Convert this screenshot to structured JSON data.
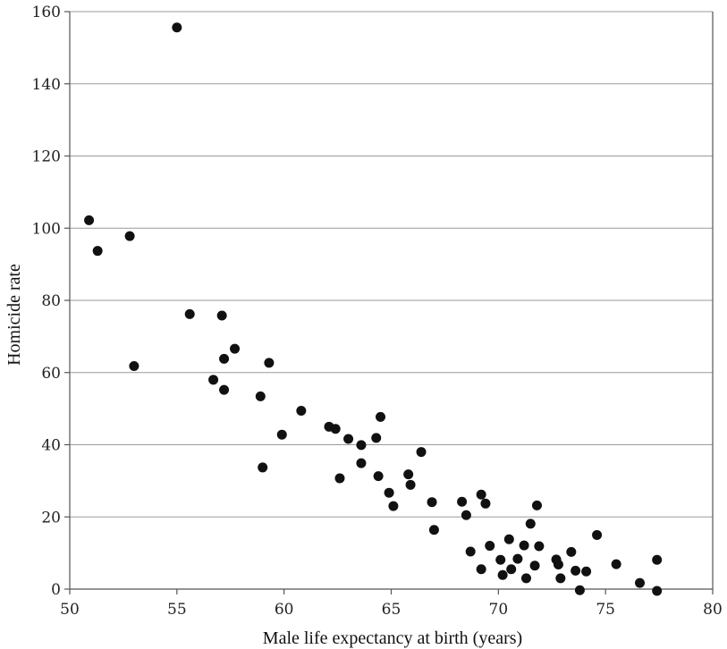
{
  "chart_data": {
    "type": "scatter",
    "title": "",
    "xlabel": "Male life expectancy at birth (years)",
    "ylabel": "Homicide rate",
    "xlim": [
      50,
      80
    ],
    "ylim": [
      0,
      160
    ],
    "x_ticks": [
      50,
      55,
      60,
      65,
      70,
      75,
      80
    ],
    "y_ticks": [
      0,
      20,
      40,
      60,
      80,
      100,
      120,
      140,
      160
    ],
    "x_tick_labels": [
      "50",
      "55",
      "60",
      "65",
      "70",
      "75",
      "80"
    ],
    "y_tick_labels": [
      "0",
      "20",
      "40",
      "60",
      "80",
      "100",
      "120",
      "140",
      "160"
    ],
    "grid": "horizontal",
    "point_color": "#111111",
    "points": [
      {
        "x": 50.9,
        "y": 102.2
      },
      {
        "x": 51.3,
        "y": 93.7
      },
      {
        "x": 52.8,
        "y": 97.8
      },
      {
        "x": 53.0,
        "y": 61.8
      },
      {
        "x": 55.0,
        "y": 155.6
      },
      {
        "x": 55.6,
        "y": 76.2
      },
      {
        "x": 56.7,
        "y": 58.0
      },
      {
        "x": 57.1,
        "y": 75.8
      },
      {
        "x": 57.2,
        "y": 63.8
      },
      {
        "x": 57.2,
        "y": 55.2
      },
      {
        "x": 57.7,
        "y": 66.6
      },
      {
        "x": 58.9,
        "y": 53.4
      },
      {
        "x": 59.0,
        "y": 33.7
      },
      {
        "x": 59.3,
        "y": 62.7
      },
      {
        "x": 59.9,
        "y": 42.8
      },
      {
        "x": 60.8,
        "y": 49.4
      },
      {
        "x": 62.1,
        "y": 45.0
      },
      {
        "x": 62.4,
        "y": 44.4
      },
      {
        "x": 62.6,
        "y": 30.7
      },
      {
        "x": 63.0,
        "y": 41.6
      },
      {
        "x": 63.6,
        "y": 39.9
      },
      {
        "x": 63.6,
        "y": 34.9
      },
      {
        "x": 64.3,
        "y": 41.9
      },
      {
        "x": 64.4,
        "y": 31.3
      },
      {
        "x": 64.5,
        "y": 47.7
      },
      {
        "x": 64.9,
        "y": 26.7
      },
      {
        "x": 65.1,
        "y": 23.0
      },
      {
        "x": 65.8,
        "y": 31.8
      },
      {
        "x": 65.9,
        "y": 28.9
      },
      {
        "x": 66.4,
        "y": 38.0
      },
      {
        "x": 66.9,
        "y": 24.1
      },
      {
        "x": 67.0,
        "y": 16.4
      },
      {
        "x": 68.3,
        "y": 24.2
      },
      {
        "x": 68.5,
        "y": 20.5
      },
      {
        "x": 68.7,
        "y": 10.4
      },
      {
        "x": 69.2,
        "y": 26.2
      },
      {
        "x": 69.2,
        "y": 5.5
      },
      {
        "x": 69.4,
        "y": 23.7
      },
      {
        "x": 69.6,
        "y": 12.0
      },
      {
        "x": 70.1,
        "y": 8.1
      },
      {
        "x": 70.2,
        "y": 3.9
      },
      {
        "x": 70.5,
        "y": 13.8
      },
      {
        "x": 70.6,
        "y": 5.5
      },
      {
        "x": 70.9,
        "y": 8.4
      },
      {
        "x": 71.2,
        "y": 12.1
      },
      {
        "x": 71.3,
        "y": 3.0
      },
      {
        "x": 71.5,
        "y": 18.1
      },
      {
        "x": 71.7,
        "y": 6.5
      },
      {
        "x": 71.8,
        "y": 23.2
      },
      {
        "x": 71.9,
        "y": 11.9
      },
      {
        "x": 72.7,
        "y": 8.2
      },
      {
        "x": 72.8,
        "y": 6.8
      },
      {
        "x": 72.9,
        "y": 3.0
      },
      {
        "x": 73.4,
        "y": 10.3
      },
      {
        "x": 73.6,
        "y": 5.1
      },
      {
        "x": 73.8,
        "y": -0.3
      },
      {
        "x": 74.1,
        "y": 4.9
      },
      {
        "x": 74.6,
        "y": 15.0
      },
      {
        "x": 75.5,
        "y": 6.9
      },
      {
        "x": 76.6,
        "y": 1.7
      },
      {
        "x": 77.4,
        "y": 8.1
      },
      {
        "x": 77.4,
        "y": -0.5
      }
    ]
  }
}
